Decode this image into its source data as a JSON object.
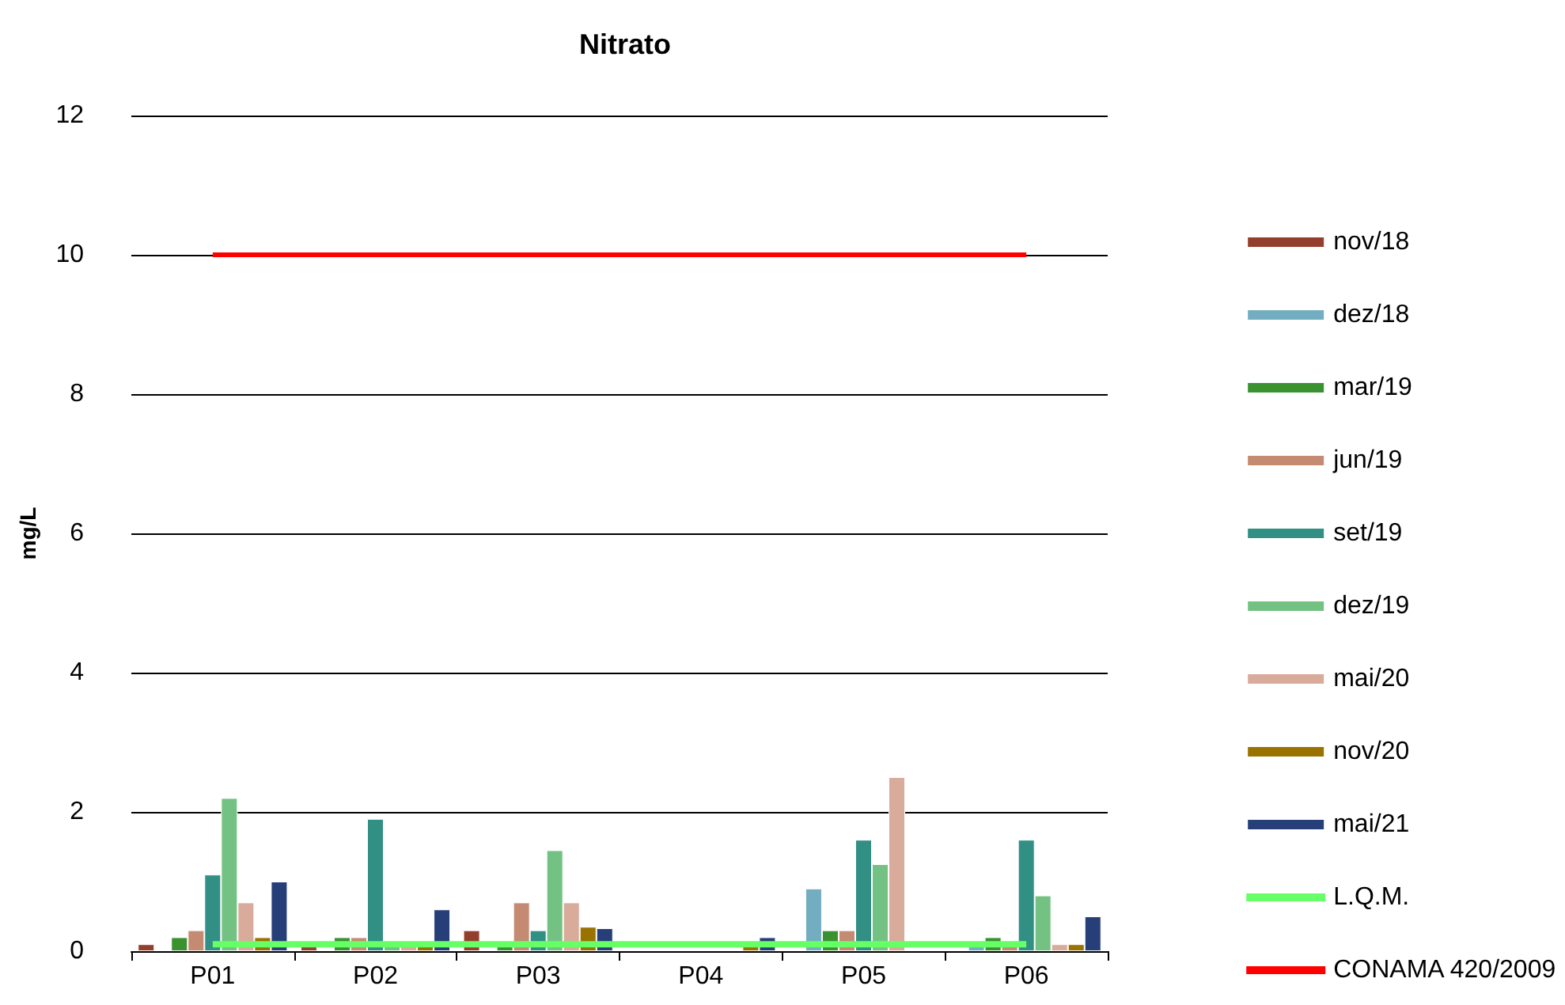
{
  "chart_data": {
    "type": "bar",
    "title": "Nitrato",
    "ylabel": "mg/L",
    "categories": [
      "P01",
      "P02",
      "P03",
      "P04",
      "P05",
      "P06"
    ],
    "ylim": [
      0,
      12
    ],
    "yticks": [
      0,
      2,
      4,
      6,
      8,
      10,
      12
    ],
    "grid": "y",
    "legend": "right",
    "series": [
      {
        "name": "nov/18",
        "color": "#943f2d",
        "values": [
          0.1,
          0.1,
          0.3,
          null,
          null,
          null
        ]
      },
      {
        "name": "dez/18",
        "color": "#72aec0",
        "values": [
          null,
          null,
          null,
          null,
          0.9,
          0.1
        ]
      },
      {
        "name": "mar/19",
        "color": "#3a9130",
        "values": [
          0.2,
          0.2,
          0.1,
          null,
          0.3,
          0.2
        ]
      },
      {
        "name": "jun/19",
        "color": "#c48a72",
        "values": [
          0.3,
          0.2,
          0.7,
          null,
          0.3,
          0.1
        ]
      },
      {
        "name": "set/19",
        "color": "#318f84",
        "values": [
          1.1,
          1.9,
          0.3,
          null,
          1.6,
          1.6
        ]
      },
      {
        "name": "dez/19",
        "color": "#74c283",
        "values": [
          2.2,
          0.1,
          1.45,
          null,
          1.25,
          0.8
        ]
      },
      {
        "name": "mai/20",
        "color": "#d8ab9a",
        "values": [
          0.7,
          0.1,
          0.7,
          null,
          2.5,
          0.1
        ]
      },
      {
        "name": "nov/20",
        "color": "#997200",
        "values": [
          0.2,
          0.1,
          0.35,
          0.1,
          null,
          0.1
        ]
      },
      {
        "name": "mai/21",
        "color": "#273f78",
        "values": [
          1.0,
          0.6,
          0.33,
          0.2,
          null,
          0.5
        ]
      },
      {
        "name": "L.Q.M.",
        "type": "line",
        "color": "#66ff66",
        "values": [
          0.1,
          0.1,
          0.1,
          0.1,
          0.1,
          0.1
        ]
      },
      {
        "name": "CONAMA 420/2009",
        "type": "line",
        "color": "#ff0000",
        "values": [
          10,
          10,
          10,
          10,
          10,
          10
        ]
      }
    ]
  }
}
